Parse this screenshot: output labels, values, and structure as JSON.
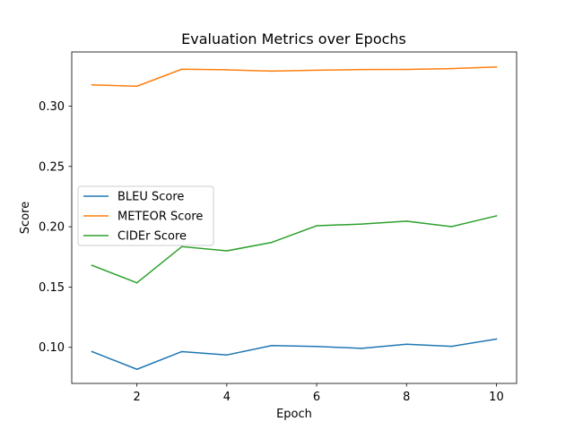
{
  "chart_data": {
    "type": "line",
    "title": "Evaluation Metrics over Epochs",
    "xlabel": "Epoch",
    "ylabel": "Score",
    "x": [
      1,
      2,
      3,
      4,
      5,
      6,
      7,
      8,
      9,
      10
    ],
    "xlim": [
      0.55,
      10.45
    ],
    "ylim": [
      0.0701,
      0.3449
    ],
    "xticks": [
      2,
      4,
      6,
      8,
      10
    ],
    "yticks": [
      0.1,
      0.15,
      0.2,
      0.25,
      0.3
    ],
    "xtick_labels": [
      "2",
      "4",
      "6",
      "8",
      "10"
    ],
    "ytick_labels": [
      "0.10",
      "0.15",
      "0.20",
      "0.25",
      "0.30"
    ],
    "grid": false,
    "legend_position": "center-left",
    "series": [
      {
        "name": "BLEU Score",
        "color": "#1f77b4",
        "values": [
          0.0965,
          0.0818,
          0.0965,
          0.0937,
          0.1015,
          0.1007,
          0.0992,
          0.1026,
          0.1008,
          0.1069
        ]
      },
      {
        "name": "METEOR Score",
        "color": "#ff7f0e",
        "values": [
          0.3176,
          0.3165,
          0.3306,
          0.3301,
          0.329,
          0.3298,
          0.3303,
          0.3304,
          0.3311,
          0.3324
        ]
      },
      {
        "name": "CIDEr Score",
        "color": "#2ca02c",
        "values": [
          0.168,
          0.1535,
          0.1835,
          0.18,
          0.187,
          0.2008,
          0.2022,
          0.2046,
          0.2001,
          0.209
        ]
      }
    ]
  }
}
